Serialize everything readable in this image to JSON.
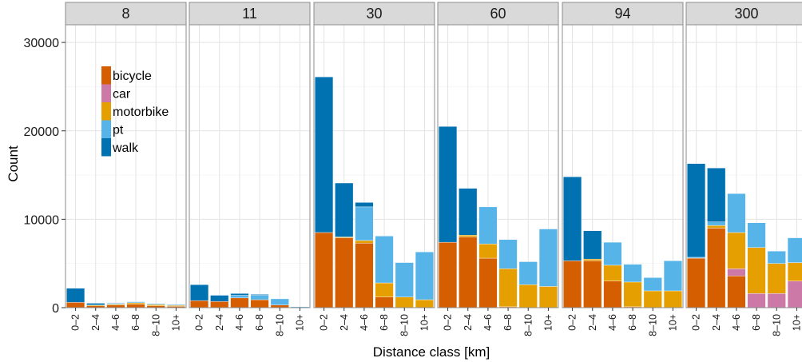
{
  "chart_data": {
    "type": "bar",
    "stacked": true,
    "xlabel": "Distance class [km]",
    "ylabel": "Count",
    "ylim": [
      0,
      32000
    ],
    "yticks": [
      0,
      10000,
      20000,
      30000
    ],
    "categories": [
      "0–2",
      "2–4",
      "4–6",
      "6–8",
      "8–10",
      "10+"
    ],
    "grid": true,
    "legend": {
      "placement": "inside-left",
      "items": [
        {
          "key": "bicycle",
          "label": "bicycle",
          "color": "#D55E00"
        },
        {
          "key": "car",
          "label": "car",
          "color": "#CC79A7"
        },
        {
          "key": "motorbike",
          "label": "motorbike",
          "color": "#E69F00"
        },
        {
          "key": "pt",
          "label": "pt",
          "color": "#56B4E9"
        },
        {
          "key": "walk",
          "label": "walk",
          "color": "#0072B2"
        }
      ]
    },
    "panels": [
      {
        "title": "8",
        "series": {
          "bicycle": [
            600,
            200,
            300,
            400,
            200,
            150
          ],
          "car": [
            0,
            0,
            0,
            0,
            0,
            0
          ],
          "motorbike": [
            0,
            100,
            100,
            150,
            150,
            100
          ],
          "pt": [
            0,
            0,
            100,
            100,
            100,
            100
          ],
          "walk": [
            1600,
            200,
            50,
            50,
            0,
            0
          ]
        }
      },
      {
        "title": "11",
        "series": {
          "bicycle": [
            800,
            700,
            1100,
            900,
            300,
            0
          ],
          "car": [
            0,
            0,
            0,
            0,
            0,
            0
          ],
          "motorbike": [
            0,
            0,
            0,
            0,
            0,
            0
          ],
          "pt": [
            0,
            0,
            300,
            500,
            700,
            100
          ],
          "walk": [
            1800,
            700,
            200,
            100,
            0,
            0
          ]
        }
      },
      {
        "title": "30",
        "series": {
          "bicycle": [
            8500,
            7900,
            7300,
            1200,
            0,
            0
          ],
          "car": [
            0,
            0,
            0,
            0,
            0,
            0
          ],
          "motorbike": [
            0,
            100,
            300,
            1600,
            1200,
            900
          ],
          "pt": [
            0,
            0,
            3800,
            5300,
            3900,
            5400
          ],
          "walk": [
            17600,
            6100,
            500,
            0,
            0,
            0
          ]
        }
      },
      {
        "title": "60",
        "series": {
          "bicycle": [
            7400,
            8000,
            5600,
            100,
            0,
            0
          ],
          "car": [
            0,
            0,
            0,
            0,
            0,
            0
          ],
          "motorbike": [
            0,
            200,
            1600,
            4300,
            2600,
            2400
          ],
          "pt": [
            0,
            0,
            4200,
            3300,
            2600,
            6500
          ],
          "walk": [
            13100,
            5300,
            0,
            0,
            0,
            0
          ]
        }
      },
      {
        "title": "94",
        "series": {
          "bicycle": [
            5300,
            5300,
            3000,
            100,
            0,
            0
          ],
          "car": [
            0,
            0,
            0,
            0,
            0,
            0
          ],
          "motorbike": [
            0,
            200,
            1800,
            2800,
            1900,
            1900
          ],
          "pt": [
            0,
            0,
            2600,
            2000,
            1500,
            3400
          ],
          "walk": [
            9500,
            3200,
            0,
            0,
            0,
            0
          ]
        }
      },
      {
        "title": "300",
        "series": {
          "bicycle": [
            5600,
            9000,
            3600,
            0,
            0,
            0
          ],
          "car": [
            0,
            0,
            800,
            1600,
            1600,
            3000
          ],
          "motorbike": [
            0,
            300,
            4100,
            5200,
            3400,
            2100
          ],
          "pt": [
            100,
            400,
            4400,
            2800,
            1400,
            2800
          ],
          "walk": [
            10600,
            6100,
            0,
            0,
            0,
            0
          ]
        }
      }
    ]
  }
}
